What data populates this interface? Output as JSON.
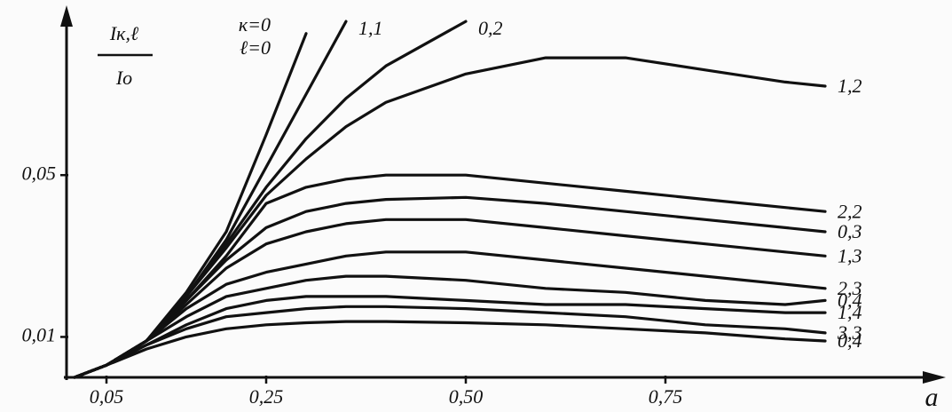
{
  "chart_data": {
    "type": "line",
    "y_label_numerator": "Iк,ℓ",
    "y_label_denominator": "Iо",
    "xlabel": "a",
    "x": [
      0.01,
      0.05,
      0.1,
      0.15,
      0.2,
      0.25,
      0.3,
      0.35,
      0.4,
      0.5,
      0.6,
      0.7,
      0.8,
      0.9,
      0.95
    ],
    "xlim": [
      0,
      1.1
    ],
    "ylim": [
      0,
      0.09
    ],
    "xticks": [
      {
        "value": 0.05,
        "label": "0,05"
      },
      {
        "value": 0.25,
        "label": "0,25"
      },
      {
        "value": 0.5,
        "label": "0,50"
      },
      {
        "value": 0.75,
        "label": "0,75"
      }
    ],
    "yticks": [
      {
        "value": 0.01,
        "label": "0,01"
      },
      {
        "value": 0.05,
        "label": "0,05"
      }
    ],
    "series": [
      {
        "name": [
          "к=0",
          "ℓ=0"
        ],
        "color": "#111",
        "values": [
          0,
          0.003,
          0.009,
          0.021,
          0.036,
          0.06,
          0.085,
          null,
          null,
          null,
          null,
          null,
          null,
          null,
          null
        ]
      },
      {
        "name": "1,1",
        "color": "#111",
        "values": [
          0,
          0.003,
          0.009,
          0.02,
          0.034,
          0.052,
          0.07,
          0.088,
          null,
          null,
          null,
          null,
          null,
          null,
          null
        ]
      },
      {
        "name": "0,2",
        "color": "#111",
        "values": [
          0,
          0.003,
          0.009,
          0.02,
          0.033,
          0.047,
          0.059,
          0.069,
          0.077,
          0.088,
          null,
          null,
          null,
          null,
          null
        ]
      },
      {
        "name": "1,2",
        "color": "#111",
        "values": [
          0,
          0.003,
          0.009,
          0.02,
          0.032,
          0.045,
          0.054,
          0.062,
          0.068,
          0.075,
          0.079,
          0.079,
          0.076,
          0.073,
          0.072
        ]
      },
      {
        "name": "2,2",
        "color": "#111",
        "values": [
          0,
          0.003,
          0.009,
          0.019,
          0.03,
          0.043,
          0.047,
          0.049,
          0.05,
          0.05,
          0.048,
          0.046,
          0.044,
          0.042,
          0.041
        ]
      },
      {
        "name": "0,3",
        "color": "#111",
        "values": [
          0,
          0.003,
          0.009,
          0.019,
          0.029,
          0.037,
          0.041,
          0.043,
          0.044,
          0.0445,
          0.043,
          0.041,
          0.039,
          0.037,
          0.036
        ]
      },
      {
        "name": "1,3",
        "color": "#111",
        "values": [
          0,
          0.003,
          0.009,
          0.018,
          0.027,
          0.033,
          0.036,
          0.038,
          0.039,
          0.039,
          0.037,
          0.035,
          0.033,
          0.031,
          0.03
        ]
      },
      {
        "name": "2,3",
        "color": "#111",
        "values": [
          0,
          0.003,
          0.009,
          0.017,
          0.023,
          0.026,
          0.028,
          0.03,
          0.031,
          0.031,
          0.029,
          0.027,
          0.025,
          0.023,
          0.022
        ]
      },
      {
        "name": "0,4",
        "color": "#111",
        "values": [
          0,
          0.003,
          0.009,
          0.015,
          0.02,
          0.022,
          0.024,
          0.025,
          0.025,
          0.024,
          0.022,
          0.021,
          0.019,
          0.018,
          0.019
        ]
      },
      {
        "name": "1,4",
        "color": "#111",
        "values": [
          0,
          0.003,
          0.008,
          0.013,
          0.017,
          0.019,
          0.02,
          0.02,
          0.02,
          0.019,
          0.018,
          0.018,
          0.017,
          0.016,
          0.016
        ]
      },
      {
        "name": "3,3",
        "color": "#111",
        "values": [
          0,
          0.003,
          0.008,
          0.012,
          0.015,
          0.016,
          0.017,
          0.0175,
          0.0175,
          0.017,
          0.016,
          0.015,
          0.013,
          0.012,
          0.011
        ]
      },
      {
        "name": "0,4",
        "color": "#111",
        "values": [
          0,
          0.003,
          0.007,
          0.01,
          0.012,
          0.013,
          0.0135,
          0.0138,
          0.0138,
          0.0135,
          0.013,
          0.012,
          0.011,
          0.0095,
          0.009
        ]
      }
    ]
  }
}
